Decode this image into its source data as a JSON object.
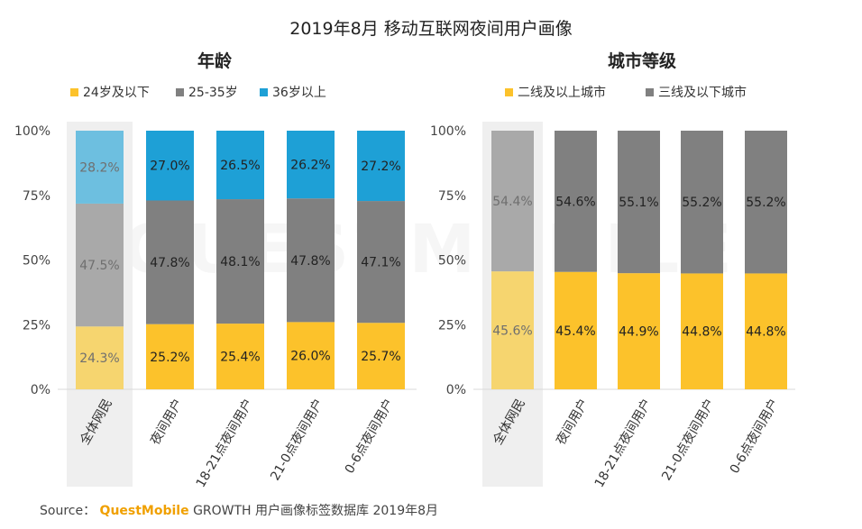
{
  "title": "2019年8月 移动互联网夜间用户画像",
  "source": {
    "prefix": "Source：",
    "brand": "QuestMobile",
    "suffix": "GROWTH 用户画像标签数据库 2019年8月"
  },
  "watermark": "QUESTMOBILE",
  "colors": {
    "yellow": "#fcc22b",
    "gray": "#808080",
    "blue": "#1ea0d6",
    "yellow_faded": "#f6d56f",
    "gray_faded": "#a9a9a9",
    "blue_faded": "#6dbfe0",
    "highlight_bg": "#efefef"
  },
  "chart_data": [
    {
      "type": "bar",
      "stacked": true,
      "title": "年龄",
      "categories": [
        "全体网民",
        "夜间用户",
        "18-21点夜间用户",
        "21-0点夜间用户",
        "0-6点夜间用户"
      ],
      "series": [
        {
          "name": "24岁及以下",
          "values": [
            24.3,
            25.2,
            25.4,
            26.0,
            25.7
          ],
          "labels": [
            "24.3%",
            "25.2%",
            "25.4%",
            "26.0%",
            "25.7%"
          ]
        },
        {
          "name": "25-35岁",
          "values": [
            47.5,
            47.8,
            48.1,
            47.8,
            47.1
          ],
          "labels": [
            "47.5%",
            "47.8%",
            "48.1%",
            "47.8%",
            "47.1%"
          ]
        },
        {
          "name": "36岁以上",
          "values": [
            28.2,
            27.0,
            26.5,
            26.2,
            27.2
          ],
          "labels": [
            "28.2%",
            "27.0%",
            "26.5%",
            "26.2%",
            "27.2%"
          ]
        }
      ],
      "yticks": [
        "0%",
        "25%",
        "50%",
        "75%",
        "100%"
      ],
      "ylim": [
        0,
        100
      ],
      "legend_position": "top",
      "highlighted_category": "全体网民"
    },
    {
      "type": "bar",
      "stacked": true,
      "title": "城市等级",
      "categories": [
        "全体网民",
        "夜间用户",
        "18-21点夜间用户",
        "21-0点夜间用户",
        "0-6点夜间用户"
      ],
      "series": [
        {
          "name": "二线及以上城市",
          "values": [
            45.6,
            45.4,
            44.9,
            44.8,
            44.8
          ],
          "labels": [
            "45.6%",
            "45.4%",
            "44.9%",
            "44.8%",
            "44.8%"
          ]
        },
        {
          "name": "三线及以下城市",
          "values": [
            54.4,
            54.6,
            55.1,
            55.2,
            55.2
          ],
          "labels": [
            "54.4%",
            "54.6%",
            "55.1%",
            "55.2%",
            "55.2%"
          ]
        }
      ],
      "yticks": [
        "0%",
        "25%",
        "50%",
        "75%",
        "100%"
      ],
      "ylim": [
        0,
        100
      ],
      "legend_position": "top",
      "highlighted_category": "全体网民"
    }
  ]
}
